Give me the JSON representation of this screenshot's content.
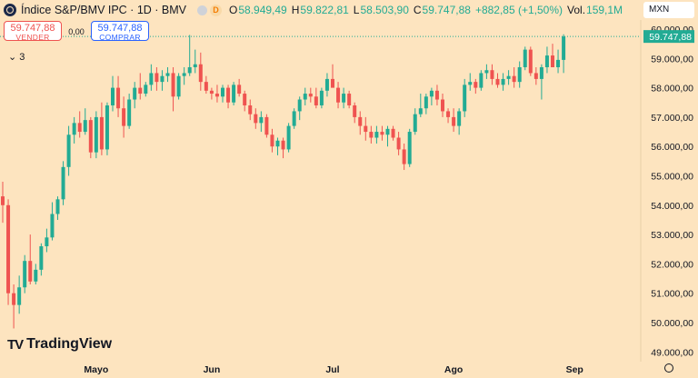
{
  "header": {
    "symbol": "Índice S&P/BMV IPC · 1D · BMV",
    "delay_badge": "D",
    "ohlc": {
      "o_label": "O",
      "o_value": "58.949,49",
      "h_label": "H",
      "h_value": "59.822,81",
      "l_label": "L",
      "l_value": "58.503,90",
      "c_label": "C",
      "c_value": "59.747,88",
      "change": "+882,85 (+1,50%)",
      "vol_label": "Vol.",
      "vol_value": "159,1M"
    }
  },
  "trade": {
    "sell_price": "59.747,88",
    "sell_label": "VENDER",
    "spread": "0,00",
    "buy_price": "59.747,88",
    "buy_label": "COMPRAR"
  },
  "indicators_toggle": "3",
  "currency": "MXN",
  "watermark": "TradingView",
  "colors": {
    "up": "#22ab94",
    "down": "#ef5350",
    "background": "#fde4bf",
    "last_price_line": "#22ab94"
  },
  "chart_data": {
    "type": "candlestick",
    "y_ticks": [
      "60.000,00",
      "59.000,00",
      "58.000,00",
      "57.000,00",
      "56.000,00",
      "55.000,00",
      "54.000,00",
      "53.000,00",
      "52.000,00",
      "51.000,00",
      "50.000,00",
      "49.000,00"
    ],
    "y_tick_values": [
      60000,
      59000,
      58000,
      57000,
      56000,
      55000,
      54000,
      53000,
      52000,
      51000,
      50000,
      49000
    ],
    "ylim": [
      48500,
      60600
    ],
    "x_ticks": [
      "Mayo",
      "Jun",
      "Jul",
      "Ago",
      "Sep"
    ],
    "x_tick_index": [
      17,
      38,
      60,
      82,
      104
    ],
    "last_price": 59747.88,
    "last_price_label": "59.747,88",
    "ohlc": [
      [
        54300,
        54800,
        53400,
        54000
      ],
      [
        54000,
        54200,
        50600,
        51000
      ],
      [
        51000,
        51300,
        49800,
        50600
      ],
      [
        50600,
        51600,
        50300,
        51200
      ],
      [
        51200,
        52300,
        51000,
        52100
      ],
      [
        52100,
        53000,
        51300,
        51400
      ],
      [
        51400,
        52000,
        51300,
        51800
      ],
      [
        51800,
        52700,
        51600,
        52600
      ],
      [
        52600,
        53200,
        52400,
        52900
      ],
      [
        52900,
        54100,
        52800,
        53700
      ],
      [
        53700,
        54300,
        53500,
        54200
      ],
      [
        54200,
        55500,
        54000,
        55300
      ],
      [
        55300,
        56700,
        55000,
        56400
      ],
      [
        56400,
        57000,
        56100,
        56800
      ],
      [
        56800,
        57200,
        56300,
        56500
      ],
      [
        56500,
        57300,
        56400,
        56900
      ],
      [
        56900,
        57000,
        55600,
        55800
      ],
      [
        55800,
        57200,
        55600,
        57000
      ],
      [
        57000,
        57500,
        55700,
        55900
      ],
      [
        55900,
        57500,
        55700,
        57400
      ],
      [
        57400,
        58400,
        57200,
        58000
      ],
      [
        58000,
        58400,
        57000,
        57300
      ],
      [
        57300,
        57700,
        56300,
        56700
      ],
      [
        56700,
        57800,
        56600,
        57600
      ],
      [
        57600,
        58200,
        57300,
        58000
      ],
      [
        58000,
        58500,
        57600,
        57800
      ],
      [
        57800,
        58200,
        57700,
        58100
      ],
      [
        58100,
        58800,
        57900,
        58500
      ],
      [
        58500,
        58700,
        57900,
        58200
      ],
      [
        58200,
        58600,
        57900,
        58400
      ],
      [
        58400,
        58700,
        58200,
        58500
      ],
      [
        58500,
        58700,
        57200,
        57700
      ],
      [
        57700,
        58500,
        57600,
        58400
      ],
      [
        58400,
        58700,
        58100,
        58500
      ],
      [
        58500,
        59800,
        58400,
        58700
      ],
      [
        58700,
        59300,
        58500,
        58800
      ],
      [
        58800,
        59200,
        57900,
        58200
      ],
      [
        58200,
        58400,
        57800,
        57900
      ],
      [
        57900,
        58000,
        57600,
        57800
      ],
      [
        57800,
        58100,
        57500,
        57700
      ],
      [
        57700,
        58100,
        57500,
        58000
      ],
      [
        58000,
        58100,
        57300,
        57500
      ],
      [
        57500,
        58200,
        57400,
        58100
      ],
      [
        58100,
        58300,
        57700,
        57800
      ],
      [
        57800,
        57900,
        57200,
        57400
      ],
      [
        57400,
        57600,
        56900,
        57100
      ],
      [
        57100,
        57300,
        56600,
        56800
      ],
      [
        56800,
        57200,
        56500,
        57000
      ],
      [
        57000,
        57100,
        56300,
        56400
      ],
      [
        56400,
        56600,
        55800,
        56000
      ],
      [
        56000,
        56300,
        55700,
        56200
      ],
      [
        56200,
        56300,
        55600,
        55900
      ],
      [
        55900,
        56800,
        55800,
        56700
      ],
      [
        56700,
        57300,
        56600,
        57200
      ],
      [
        57200,
        57700,
        56900,
        57600
      ],
      [
        57600,
        58000,
        57400,
        57800
      ],
      [
        57800,
        58000,
        57500,
        57700
      ],
      [
        57700,
        58000,
        57300,
        57400
      ],
      [
        57400,
        58000,
        57300,
        57900
      ],
      [
        57900,
        58500,
        57700,
        58300
      ],
      [
        58300,
        58800,
        58100,
        58000
      ],
      [
        58000,
        58200,
        57300,
        57500
      ],
      [
        57500,
        58000,
        57300,
        57800
      ],
      [
        57800,
        57900,
        57300,
        57400
      ],
      [
        57400,
        57500,
        56800,
        57000
      ],
      [
        57000,
        57200,
        56400,
        56700
      ],
      [
        56700,
        57000,
        56200,
        56500
      ],
      [
        56500,
        56700,
        56100,
        56300
      ],
      [
        56300,
        56700,
        56100,
        56500
      ],
      [
        56500,
        56700,
        56200,
        56400
      ],
      [
        56400,
        56700,
        56000,
        56600
      ],
      [
        56600,
        56700,
        56200,
        56300
      ],
      [
        56300,
        56500,
        55700,
        55900
      ],
      [
        55900,
        56100,
        55200,
        55400
      ],
      [
        55400,
        56600,
        55300,
        56500
      ],
      [
        56500,
        57300,
        56400,
        57100
      ],
      [
        57100,
        57800,
        57000,
        57300
      ],
      [
        57300,
        57800,
        57100,
        57700
      ],
      [
        57700,
        58000,
        57400,
        57900
      ],
      [
        57900,
        58100,
        57400,
        57600
      ],
      [
        57600,
        57800,
        57000,
        57200
      ],
      [
        57200,
        57300,
        56800,
        57000
      ],
      [
        57000,
        57300,
        56500,
        56700
      ],
      [
        56700,
        57300,
        56400,
        57200
      ],
      [
        57200,
        58300,
        57000,
        58100
      ],
      [
        58100,
        58500,
        57900,
        58200
      ],
      [
        58200,
        58300,
        57800,
        58000
      ],
      [
        58000,
        58600,
        57900,
        58500
      ],
      [
        58500,
        58800,
        58300,
        58600
      ],
      [
        58600,
        58800,
        58100,
        58300
      ],
      [
        58300,
        58500,
        58000,
        58100
      ],
      [
        58100,
        58500,
        57900,
        58300
      ],
      [
        58300,
        58600,
        58100,
        58400
      ],
      [
        58400,
        58700,
        58000,
        58200
      ],
      [
        58200,
        58900,
        58000,
        58700
      ],
      [
        58700,
        59400,
        58600,
        59300
      ],
      [
        59300,
        59400,
        58400,
        58500
      ],
      [
        58500,
        58700,
        58100,
        58300
      ],
      [
        58300,
        58800,
        57600,
        58700
      ],
      [
        58700,
        59400,
        58500,
        59100
      ],
      [
        59100,
        59500,
        58800,
        58700
      ],
      [
        58700,
        59300,
        58500,
        58950
      ],
      [
        58950,
        59822.81,
        58503.9,
        59747.88
      ]
    ]
  }
}
